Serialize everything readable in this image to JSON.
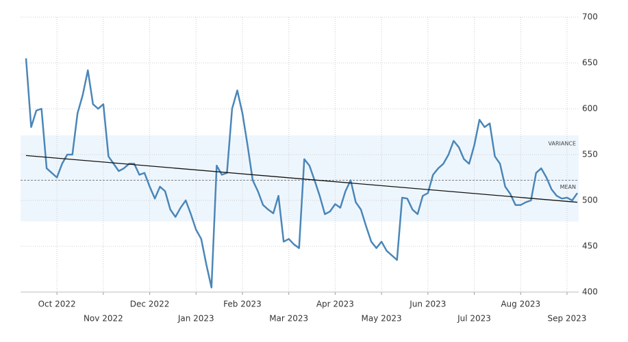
{
  "chart_data": {
    "type": "line",
    "categories": [
      null,
      null,
      null,
      null,
      null,
      null,
      "Oct 2022",
      null,
      null,
      null,
      null,
      null,
      null,
      null,
      null,
      "Nov 2022",
      null,
      null,
      null,
      null,
      null,
      null,
      null,
      null,
      "Dec 2022",
      null,
      null,
      null,
      null,
      null,
      null,
      null,
      null,
      "Jan 2023",
      null,
      null,
      null,
      null,
      null,
      null,
      null,
      null,
      "Feb 2023",
      null,
      null,
      null,
      null,
      null,
      null,
      null,
      null,
      "Mar 2023",
      null,
      null,
      null,
      null,
      null,
      null,
      null,
      null,
      "Apr 2023",
      null,
      null,
      null,
      null,
      null,
      null,
      null,
      null,
      "May 2023",
      null,
      null,
      null,
      null,
      null,
      null,
      null,
      null,
      "Jun 2023",
      null,
      null,
      null,
      null,
      null,
      null,
      null,
      null,
      "Jul 2023",
      null,
      null,
      null,
      null,
      null,
      null,
      null,
      null,
      "Aug 2023",
      null,
      null,
      null,
      null,
      null,
      null,
      null,
      null,
      "Sep 2023",
      null,
      null
    ],
    "series": [
      {
        "color": "#4a86b8",
        "values": [
          655,
          580,
          598,
          600,
          535,
          530,
          525,
          540,
          550,
          550,
          595,
          615,
          642,
          605,
          600,
          605,
          548,
          540,
          532,
          535,
          540,
          540,
          528,
          530,
          515,
          502,
          515,
          510,
          490,
          482,
          492,
          500,
          485,
          468,
          458,
          430,
          405,
          538,
          528,
          530,
          600,
          620,
          595,
          560,
          522,
          510,
          495,
          490,
          486,
          505,
          455,
          458,
          452,
          448,
          545,
          538,
          522,
          505,
          485,
          488,
          496,
          492,
          510,
          522,
          498,
          490,
          472,
          455,
          448,
          455,
          445,
          440,
          435,
          503,
          502,
          490,
          485,
          505,
          508,
          528,
          535,
          540,
          550,
          565,
          558,
          545,
          540,
          560,
          588,
          580,
          584,
          548,
          540,
          515,
          507,
          495,
          495,
          498,
          500,
          530,
          535,
          525,
          512,
          505,
          502,
          503,
          500,
          508
        ]
      }
    ],
    "ylim": [
      400,
      700
    ],
    "yticks": [
      400,
      450,
      500,
      550,
      600,
      650,
      700
    ],
    "grid": true,
    "mean": 522,
    "variance_band": [
      477,
      571
    ],
    "trend": [
      549,
      498
    ],
    "annotations": [
      "VARIANCE",
      "MEAN"
    ]
  }
}
